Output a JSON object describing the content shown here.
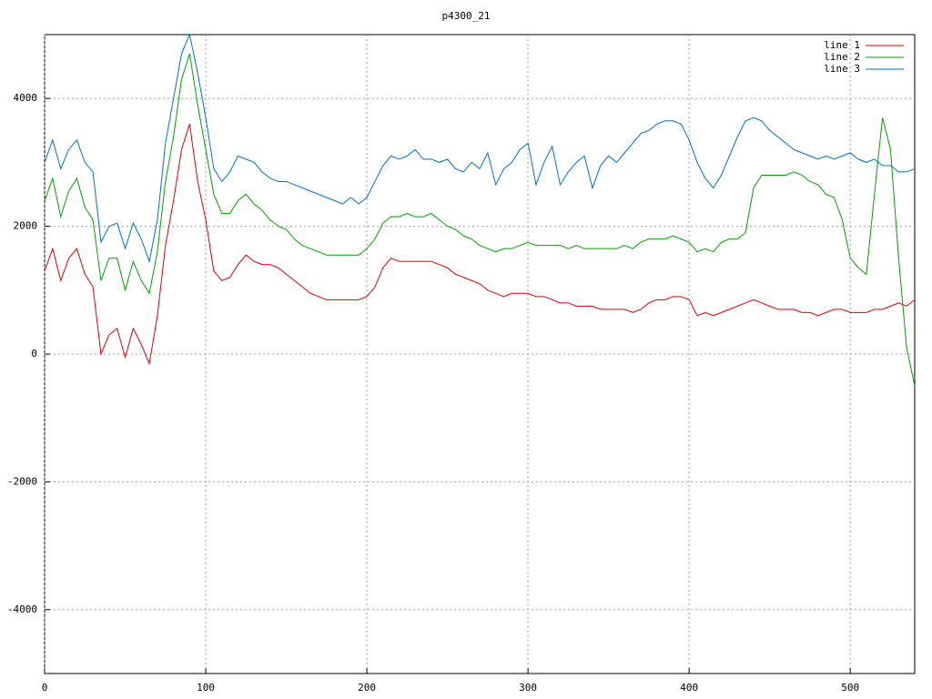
{
  "chart_data": {
    "type": "line",
    "title": "p4300_21",
    "x": [
      0,
      5,
      10,
      15,
      20,
      25,
      30,
      35,
      40,
      45,
      50,
      55,
      60,
      65,
      70,
      75,
      80,
      85,
      90,
      95,
      100,
      105,
      110,
      115,
      120,
      125,
      130,
      135,
      140,
      145,
      150,
      155,
      160,
      165,
      170,
      175,
      180,
      185,
      190,
      195,
      200,
      205,
      210,
      215,
      220,
      225,
      230,
      235,
      240,
      245,
      250,
      255,
      260,
      265,
      270,
      275,
      280,
      285,
      290,
      295,
      300,
      305,
      310,
      315,
      320,
      325,
      330,
      335,
      340,
      345,
      350,
      355,
      360,
      365,
      370,
      375,
      380,
      385,
      390,
      395,
      400,
      405,
      410,
      415,
      420,
      425,
      430,
      435,
      440,
      445,
      450,
      455,
      460,
      465,
      470,
      475,
      480,
      485,
      490,
      495,
      500,
      505,
      510,
      515,
      520,
      525,
      530,
      535,
      540
    ],
    "series": [
      {
        "name": "line 1",
        "color": "#e00000",
        "values": [
          1300,
          1650,
          1150,
          1500,
          1650,
          1250,
          1050,
          0,
          300,
          400,
          -50,
          400,
          150,
          -150,
          600,
          1700,
          2400,
          3200,
          3600,
          2700,
          2100,
          1300,
          1150,
          1200,
          1400,
          1550,
          1450,
          1400,
          1400,
          1350,
          1250,
          1150,
          1050,
          950,
          900,
          850,
          850,
          850,
          850,
          850,
          900,
          1050,
          1350,
          1500,
          1450,
          1450,
          1450,
          1450,
          1450,
          1400,
          1350,
          1250,
          1200,
          1150,
          1100,
          1000,
          950,
          900,
          950,
          950,
          950,
          900,
          900,
          850,
          800,
          800,
          750,
          750,
          750,
          700,
          700,
          700,
          700,
          650,
          700,
          800,
          850,
          850,
          900,
          900,
          850,
          600,
          650,
          600,
          650,
          700,
          750,
          800,
          850,
          800,
          750,
          700,
          700,
          700,
          650,
          650,
          600,
          650,
          700,
          700,
          650,
          650,
          650,
          700,
          700,
          750,
          800,
          750,
          850
        ]
      },
      {
        "name": "line 2",
        "color": "#00a000",
        "values": [
          2400,
          2750,
          2150,
          2550,
          2750,
          2300,
          2100,
          1150,
          1500,
          1500,
          1000,
          1450,
          1150,
          950,
          1600,
          2700,
          3400,
          4300,
          4700,
          3900,
          3200,
          2500,
          2200,
          2200,
          2400,
          2500,
          2350,
          2250,
          2100,
          2000,
          1950,
          1800,
          1700,
          1650,
          1600,
          1550,
          1550,
          1550,
          1550,
          1550,
          1650,
          1800,
          2050,
          2150,
          2150,
          2200,
          2150,
          2150,
          2200,
          2100,
          2000,
          1950,
          1850,
          1800,
          1700,
          1650,
          1600,
          1650,
          1650,
          1700,
          1750,
          1700,
          1700,
          1700,
          1700,
          1650,
          1700,
          1650,
          1650,
          1650,
          1650,
          1650,
          1700,
          1650,
          1750,
          1800,
          1800,
          1800,
          1850,
          1800,
          1750,
          1600,
          1650,
          1600,
          1750,
          1800,
          1800,
          1900,
          2600,
          2800,
          2800,
          2800,
          2800,
          2850,
          2800,
          2700,
          2650,
          2500,
          2450,
          2100,
          1500,
          1350,
          1250,
          2500,
          3700,
          3200,
          1500,
          100,
          -500
        ]
      },
      {
        "name": "line 3",
        "color": "#0070d0",
        "values": [
          3000,
          3350,
          2900,
          3200,
          3350,
          3000,
          2850,
          1750,
          2000,
          2050,
          1650,
          2050,
          1800,
          1450,
          2100,
          3300,
          4000,
          4700,
          5000,
          4400,
          3700,
          2900,
          2700,
          2850,
          3100,
          3050,
          3000,
          2850,
          2750,
          2700,
          2700,
          2650,
          2600,
          2550,
          2500,
          2450,
          2400,
          2350,
          2450,
          2350,
          2450,
          2700,
          2950,
          3100,
          3050,
          3100,
          3200,
          3050,
          3050,
          3000,
          3050,
          2900,
          2850,
          3000,
          2900,
          3150,
          2650,
          2900,
          3000,
          3200,
          3300,
          2650,
          3000,
          3250,
          2650,
          2850,
          3000,
          3100,
          2600,
          2950,
          3100,
          3000,
          3150,
          3300,
          3450,
          3500,
          3600,
          3650,
          3650,
          3600,
          3350,
          3000,
          2750,
          2600,
          2800,
          3100,
          3400,
          3650,
          3700,
          3650,
          3500,
          3400,
          3300,
          3200,
          3150,
          3100,
          3050,
          3100,
          3050,
          3100,
          3150,
          3050,
          3000,
          3050,
          2950,
          2950,
          2850,
          2850,
          2900
        ]
      }
    ],
    "xlim": [
      0,
      540
    ],
    "xticks": [
      0,
      100,
      200,
      300,
      400,
      500
    ],
    "ylim": [
      -5000,
      5000
    ],
    "yticks": [
      -4000,
      -2000,
      0,
      2000,
      4000
    ],
    "grid": true,
    "legend": "top-right"
  }
}
